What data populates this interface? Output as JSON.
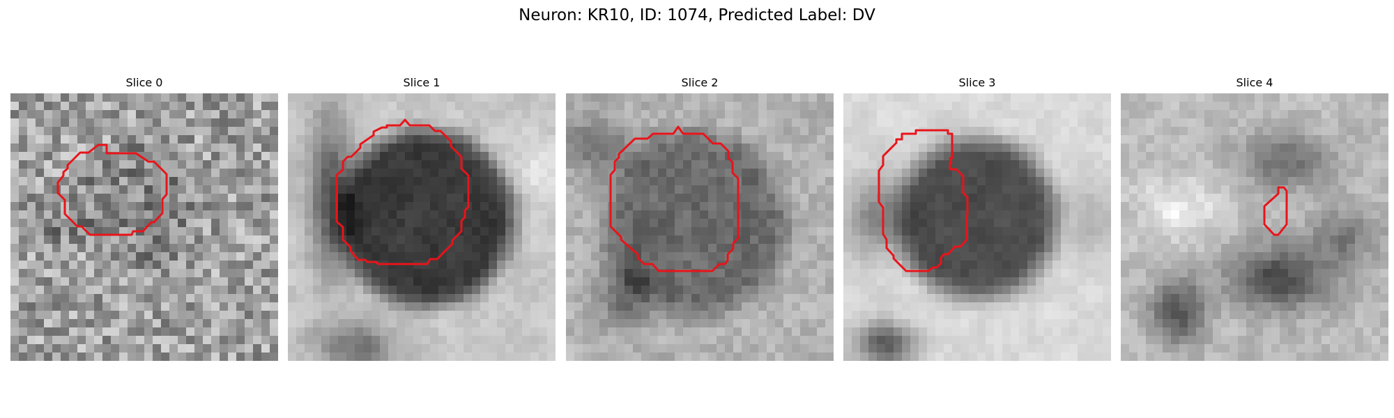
{
  "figure": {
    "title": "Neuron: KR10, ID: 1074, Predicted Label: DV"
  },
  "colors": {
    "contour": "#e8141a",
    "background": "#ffffff"
  },
  "panels": [
    {
      "title": "Slice 0"
    },
    {
      "title": "Slice 1"
    },
    {
      "title": "Slice 2"
    },
    {
      "title": "Slice 3"
    },
    {
      "title": "Slice 4"
    }
  ]
}
